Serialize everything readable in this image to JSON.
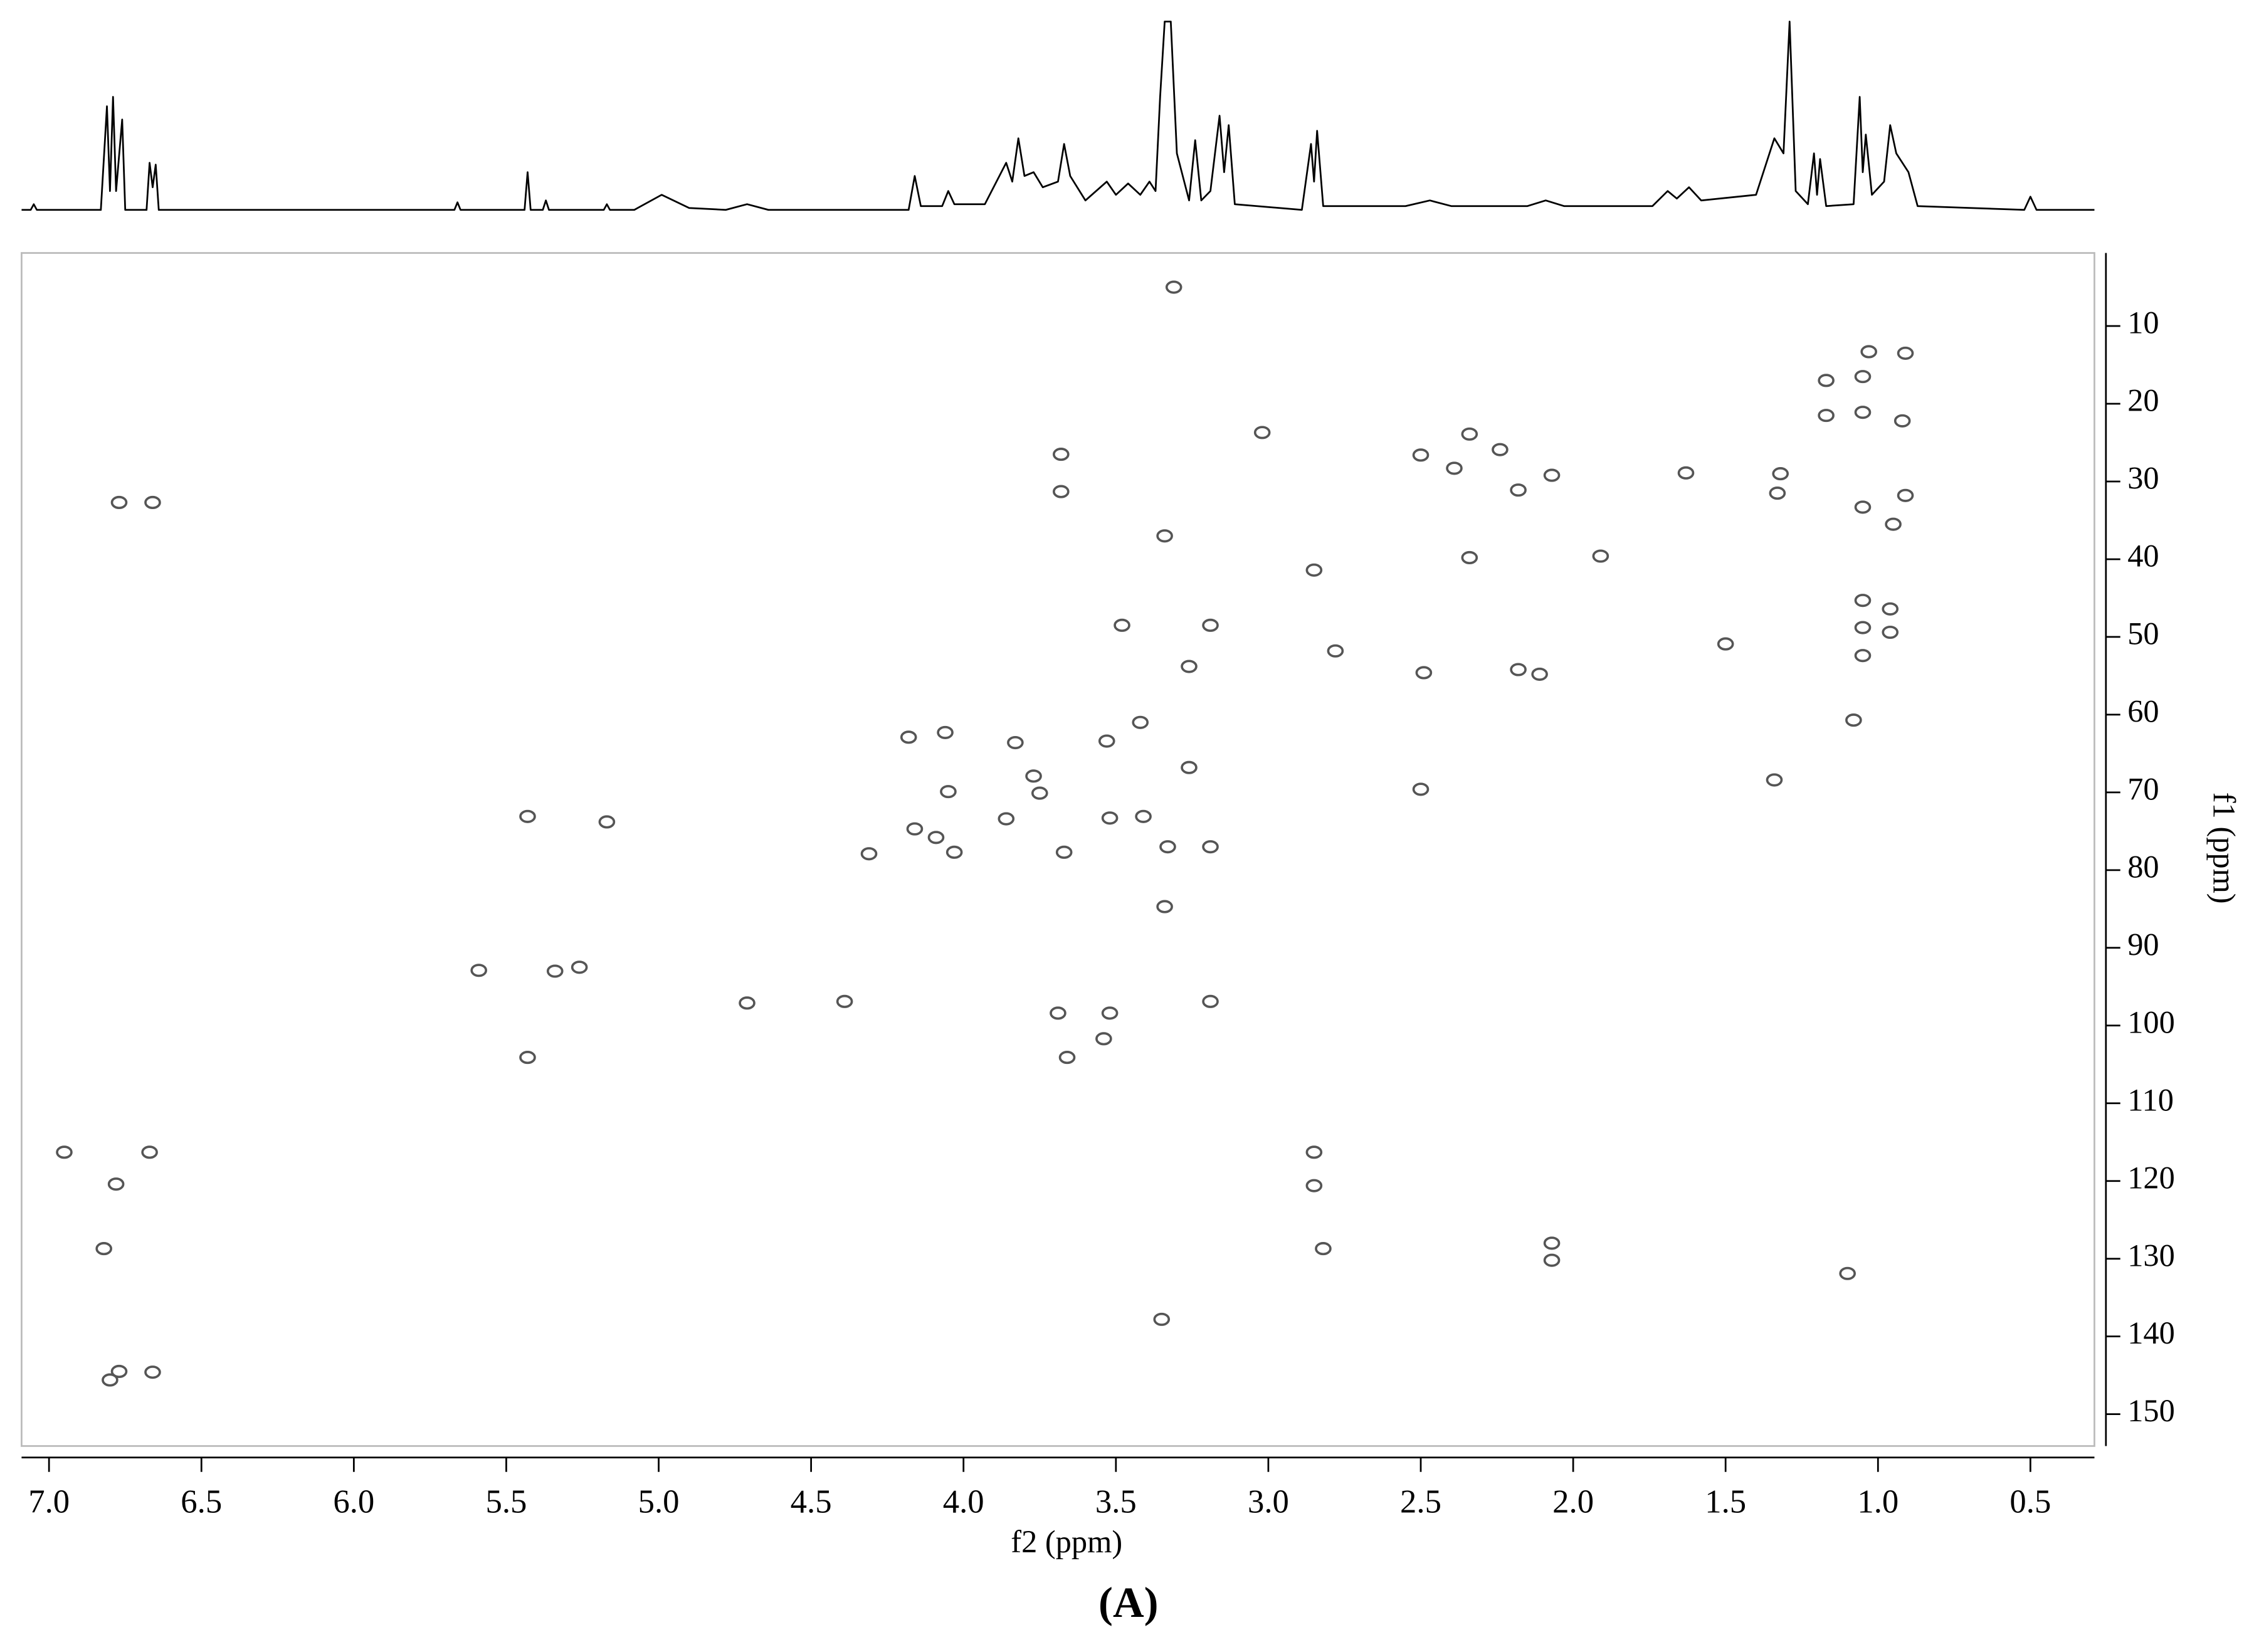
{
  "chart_data": [
    {
      "type": "line",
      "color": "#000000",
      "xlim": [
        7.09,
        0.29
      ],
      "ylim": [
        0,
        100
      ],
      "x": [
        7.09,
        7.06,
        7.05,
        7.04,
        6.83,
        6.81,
        6.8,
        6.79,
        6.78,
        6.76,
        6.75,
        6.68,
        6.67,
        6.66,
        6.65,
        6.64,
        5.67,
        5.66,
        5.65,
        5.44,
        5.43,
        5.42,
        5.38,
        5.37,
        5.36,
        5.18,
        5.17,
        5.16,
        5.08,
        4.99,
        4.9,
        4.78,
        4.71,
        4.64,
        4.18,
        4.16,
        4.14,
        4.07,
        4.05,
        4.03,
        3.93,
        3.86,
        3.84,
        3.82,
        3.8,
        3.77,
        3.74,
        3.69,
        3.67,
        3.65,
        3.6,
        3.53,
        3.5,
        3.46,
        3.42,
        3.39,
        3.37,
        3.355,
        3.34,
        3.32,
        3.3,
        3.26,
        3.24,
        3.22,
        3.19,
        3.16,
        3.145,
        3.13,
        3.11,
        2.89,
        2.86,
        2.85,
        2.84,
        2.82,
        2.55,
        2.47,
        2.4,
        2.15,
        2.09,
        2.03,
        1.74,
        1.69,
        1.66,
        1.62,
        1.58,
        1.4,
        1.34,
        1.31,
        1.29,
        1.27,
        1.23,
        1.21,
        1.2,
        1.19,
        1.17,
        1.08,
        1.06,
        1.05,
        1.04,
        1.02,
        0.98,
        0.96,
        0.94,
        0.92,
        0.9,
        0.87,
        0.52,
        0.5,
        0.48,
        0.29
      ],
      "values": [
        0,
        0,
        3,
        0,
        0,
        55,
        10,
        60,
        10,
        48,
        0,
        0,
        25,
        12,
        24,
        0,
        0,
        4,
        0,
        0,
        20,
        0,
        0,
        5,
        0,
        0,
        3,
        0,
        0,
        8,
        1,
        0,
        3,
        0,
        0,
        18,
        2,
        2,
        10,
        3,
        3,
        25,
        15,
        38,
        18,
        20,
        12,
        15,
        35,
        18,
        5,
        15,
        8,
        14,
        8,
        15,
        10,
        60,
        100,
        100,
        30,
        5,
        37,
        5,
        10,
        50,
        20,
        45,
        3,
        0,
        35,
        15,
        42,
        2,
        2,
        5,
        2,
        2,
        5,
        2,
        2,
        10,
        6,
        12,
        5,
        8,
        38,
        30,
        100,
        10,
        3,
        30,
        8,
        27,
        2,
        3,
        60,
        20,
        40,
        8,
        15,
        45,
        30,
        25,
        20,
        2,
        0,
        7,
        0,
        0
      ]
    },
    {
      "type": "scatter",
      "color": "#555555",
      "x_label": "f2 (ppm)",
      "y_label": "f1 (ppm)",
      "caption": "(A)",
      "xlim": [
        7.09,
        0.29
      ],
      "ylim": [
        154.1,
        0.6
      ],
      "xticks": [
        {
          "value": 7,
          "label": "7.0"
        },
        6.5,
        {
          "value": 6,
          "label": "6.0"
        },
        5.5,
        {
          "value": 5,
          "label": "5.0"
        },
        4.5,
        {
          "value": 4,
          "label": "4.0"
        },
        3.5,
        {
          "value": 3,
          "label": "3.0"
        },
        2.5,
        {
          "value": 2,
          "label": "2.0"
        },
        1.5,
        {
          "value": 1,
          "label": "1.0"
        },
        0.5
      ],
      "yticks": [
        10,
        20,
        30,
        40,
        50,
        60,
        70,
        80,
        90,
        100,
        110,
        120,
        130,
        140,
        150
      ],
      "x": [
        3.31,
        1.03,
        0.91,
        1.17,
        1.05,
        1.05,
        0.92,
        1.17,
        3.68,
        3.68,
        2.5,
        2.39,
        2.34,
        2.24,
        2.18,
        2.07,
        1.63,
        1.32,
        1.33,
        1.05,
        0.91,
        0.95,
        3.34,
        3.02,
        6.77,
        6.66,
        2.34,
        1.91,
        2.85,
        3.48,
        3.19,
        3.26,
        2.78,
        2.49,
        2.11,
        1.5,
        1.05,
        0.96,
        0.96,
        1.05,
        1.05,
        1.08,
        1.34,
        4.06,
        4.18,
        3.42,
        3.53,
        3.83,
        4.05,
        3.75,
        3.52,
        3.41,
        4.16,
        4.09,
        4.03,
        4.31,
        3.67,
        3.33,
        3.19,
        5.43,
        5.17,
        5.59,
        5.26,
        5.34,
        4.71,
        4.39,
        3.69,
        3.52,
        3.54,
        3.66,
        5.43,
        3.19,
        2.5,
        3.26,
        6.95,
        6.67,
        6.78,
        6.82,
        6.77,
        6.8,
        6.66,
        2.85,
        2.85,
        2.82,
        2.07,
        2.07,
        1.1,
        3.35,
        3.34,
        3.86,
        3.77,
        2.18
      ],
      "values": [
        5,
        13.3,
        13.5,
        17,
        16.5,
        21.1,
        22.2,
        21.5,
        26.5,
        31.3,
        26.6,
        28.3,
        23.9,
        25.9,
        31.1,
        29.2,
        28.9,
        29,
        31.5,
        33.3,
        31.8,
        35.5,
        37,
        23.7,
        32.7,
        32.7,
        39.8,
        39.6,
        41.4,
        48.5,
        48.5,
        53.8,
        51.8,
        54.6,
        54.8,
        50.9,
        45.3,
        46.4,
        49.4,
        48.8,
        52.4,
        60.7,
        68.4,
        62.3,
        62.9,
        61,
        63.4,
        63.6,
        69.9,
        70.1,
        73.3,
        73.1,
        74.7,
        75.8,
        77.7,
        77.9,
        77.7,
        77,
        77,
        73.1,
        73.8,
        92.9,
        92.5,
        93,
        97.1,
        96.9,
        98.4,
        98.4,
        101.7,
        104.1,
        104.1,
        96.9,
        69.6,
        66.8,
        116.3,
        116.3,
        120.4,
        128.7,
        144.5,
        145.6,
        144.6,
        116.3,
        120.6,
        128.7,
        128,
        130.2,
        131.9,
        137.8,
        84.7,
        73.4,
        67.9,
        54.2
      ]
    }
  ]
}
